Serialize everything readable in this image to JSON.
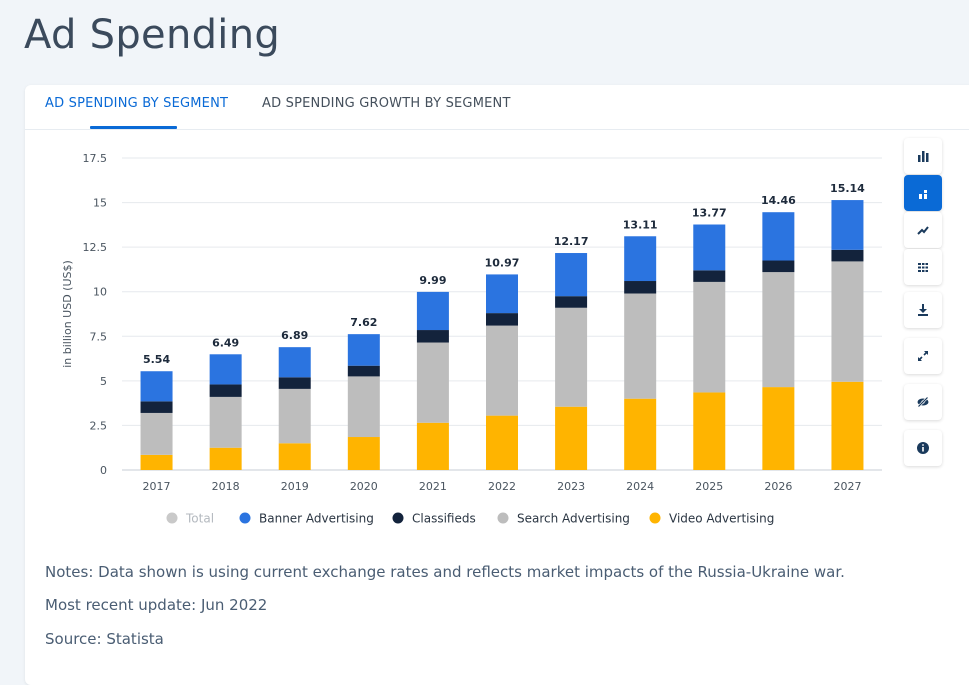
{
  "page": {
    "title": "Ad Spending"
  },
  "tabs": [
    {
      "label": "AD SPENDING BY SEGMENT",
      "active": true
    },
    {
      "label": "AD SPENDING GROWTH BY SEGMENT",
      "active": false
    }
  ],
  "toolbar": {
    "tools": [
      {
        "name": "bar-chart-icon",
        "active": false
      },
      {
        "name": "stacked-chart-icon",
        "active": true
      },
      {
        "name": "line-chart-icon",
        "active": false
      },
      {
        "name": "table-icon",
        "active": false
      },
      {
        "name": "download-icon",
        "active": false
      },
      {
        "name": "fullscreen-icon",
        "active": false
      },
      {
        "name": "hide-icon",
        "active": false
      },
      {
        "name": "info-icon",
        "active": false
      }
    ]
  },
  "chart_data": {
    "type": "bar",
    "stacked": true,
    "ylabel": "in billion USD (US$)",
    "ylim": [
      0,
      17.5
    ],
    "yticks": [
      "0",
      "2.5",
      "5",
      "7.5",
      "10",
      "12.5",
      "15",
      "17.5"
    ],
    "grid": true,
    "legend_position": "bottom",
    "categories": [
      "2017",
      "2018",
      "2019",
      "2020",
      "2021",
      "2022",
      "2023",
      "2024",
      "2025",
      "2026",
      "2027"
    ],
    "totals": [
      "5.54",
      "6.49",
      "6.89",
      "7.62",
      "9.99",
      "10.97",
      "12.17",
      "13.11",
      "13.77",
      "14.46",
      "15.14"
    ],
    "series": [
      {
        "name": "Video Advertising",
        "color": "#ffb400",
        "values": [
          0.85,
          1.25,
          1.5,
          1.85,
          2.65,
          3.05,
          3.55,
          4.0,
          4.35,
          4.65,
          4.95
        ]
      },
      {
        "name": "Search Advertising",
        "color": "#bdbdbd",
        "values": [
          2.35,
          2.85,
          3.05,
          3.4,
          4.5,
          5.05,
          5.55,
          5.9,
          6.2,
          6.45,
          6.75
        ]
      },
      {
        "name": "Classifieds",
        "color": "#13233c",
        "values": [
          0.65,
          0.7,
          0.65,
          0.6,
          0.7,
          0.7,
          0.65,
          0.7,
          0.65,
          0.65,
          0.65
        ]
      },
      {
        "name": "Banner Advertising",
        "color": "#2b74e0",
        "values": [
          1.69,
          1.69,
          1.69,
          1.77,
          2.14,
          2.17,
          2.42,
          2.51,
          2.57,
          2.71,
          2.79
        ]
      }
    ],
    "legend": [
      {
        "name": "Total",
        "color": "#c9c9c9",
        "muted": true
      },
      {
        "name": "Banner Advertising",
        "color": "#2b74e0"
      },
      {
        "name": "Classifieds",
        "color": "#13233c"
      },
      {
        "name": "Search Advertising",
        "color": "#bdbdbd"
      },
      {
        "name": "Video Advertising",
        "color": "#ffb400"
      }
    ]
  },
  "notes": {
    "note": "Notes: Data shown is using current exchange rates and reflects market impacts of the Russia-Ukraine war.",
    "update": "Most recent update: Jun 2022",
    "source": "Source: Statista"
  }
}
